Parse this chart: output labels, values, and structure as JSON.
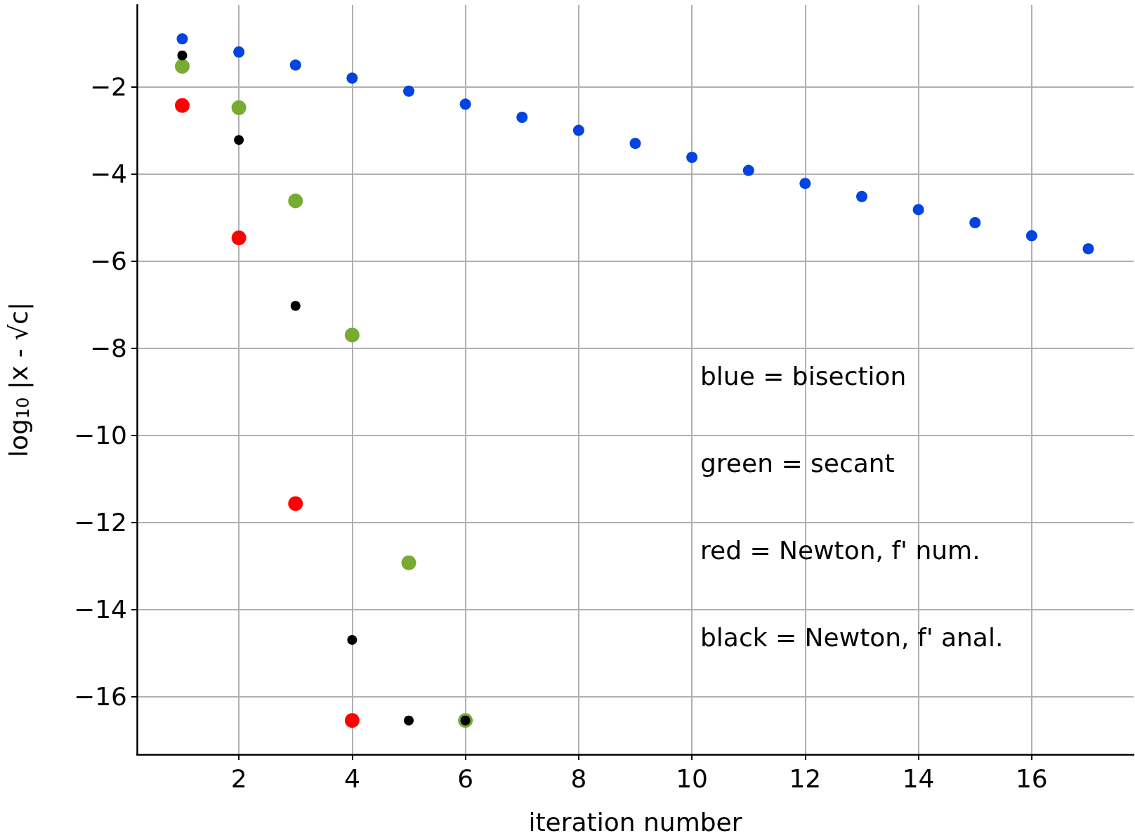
{
  "chart_data": {
    "type": "scatter",
    "xlabel": "iteration number",
    "ylabel": "log$_{10}$ |x - √c|",
    "x": [
      1,
      2,
      3,
      4,
      5,
      6,
      7,
      8,
      9,
      10,
      11,
      12,
      13,
      14,
      15,
      16,
      17
    ],
    "series": [
      {
        "color": "#0343df",
        "values": [
          -0.9,
          -1.2,
          -1.5,
          -1.8,
          -2.1,
          -2.4,
          -2.7,
          -3.0,
          -3.3,
          -3.62,
          -3.92,
          -4.22,
          -4.52,
          -4.82,
          -5.12,
          -5.42,
          -5.72
        ]
      },
      {
        "color": "#77ab32",
        "x": [
          1,
          2,
          3,
          4,
          5,
          6
        ],
        "values": [
          -1.53,
          -2.48,
          -4.62,
          -7.7,
          -12.93,
          -16.55
        ]
      },
      {
        "color": "#ff0000",
        "x": [
          1,
          2,
          3,
          4
        ],
        "values": [
          -2.43,
          -5.47,
          -11.57,
          -16.55
        ]
      },
      {
        "color": "#000000",
        "x": [
          1,
          2,
          3,
          4,
          5,
          6
        ],
        "values": [
          -1.28,
          -3.22,
          -7.03,
          -14.7,
          -16.55,
          -16.55
        ]
      }
    ],
    "annotations": [
      "blue = bisection",
      "green = secant",
      "red = Newton, f' num.",
      "black = Newton, f' anal."
    ],
    "xlim": [
      0.2,
      17.8
    ],
    "xticks": [
      2,
      4,
      6,
      8,
      10,
      12,
      14,
      16
    ],
    "ylim": [
      -17.33,
      -0.12
    ],
    "yticks": [
      -16,
      -14,
      -12,
      -10,
      -8,
      -6,
      -4,
      -2
    ],
    "grid": true,
    "marker": "circle"
  }
}
